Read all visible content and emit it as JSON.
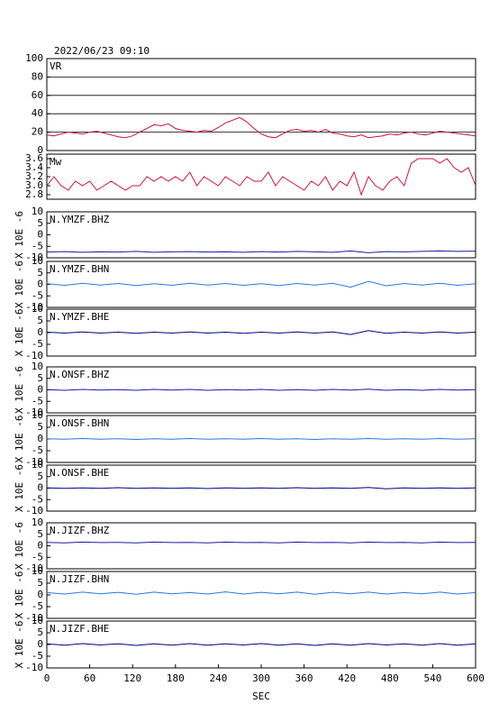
{
  "chart_data": [
    {
      "type": "line",
      "title": "2022/06/23 09:10",
      "grid": true,
      "x": [
        0,
        10,
        20,
        30,
        40,
        50,
        60,
        70,
        80,
        90,
        100,
        110,
        120,
        130,
        140,
        150,
        160,
        170,
        180,
        190,
        200,
        210,
        220,
        230,
        240,
        250,
        260,
        270,
        280,
        290,
        300,
        310,
        320,
        330,
        340,
        350,
        360,
        370,
        380,
        390,
        400,
        410,
        420,
        430,
        440,
        450,
        460,
        470,
        480,
        490,
        500,
        510,
        520,
        530,
        540,
        550,
        560,
        570,
        580,
        590,
        600
      ],
      "xlim": [
        0,
        600
      ],
      "ylim": [
        0,
        100
      ],
      "yticks": [
        0,
        20,
        40,
        60,
        80,
        100
      ],
      "series": [
        {
          "name": "VR",
          "color": "#d0103a",
          "values": [
            17,
            16,
            18,
            20,
            19,
            18,
            20,
            21,
            19,
            17,
            15,
            14,
            16,
            20,
            24,
            28,
            27,
            29,
            24,
            22,
            21,
            20,
            22,
            21,
            25,
            30,
            33,
            36,
            31,
            24,
            18,
            15,
            14,
            18,
            22,
            23,
            21,
            22,
            20,
            23,
            19,
            18,
            16,
            15,
            17,
            14,
            15,
            16,
            18,
            17,
            19,
            20,
            18,
            17,
            19,
            21,
            20,
            19,
            18,
            17,
            16
          ]
        }
      ]
    },
    {
      "type": "line",
      "x": [
        0,
        10,
        20,
        30,
        40,
        50,
        60,
        70,
        80,
        90,
        100,
        110,
        120,
        130,
        140,
        150,
        160,
        170,
        180,
        190,
        200,
        210,
        220,
        230,
        240,
        250,
        260,
        270,
        280,
        290,
        300,
        310,
        320,
        330,
        340,
        350,
        360,
        370,
        380,
        390,
        400,
        410,
        420,
        430,
        440,
        450,
        460,
        470,
        480,
        490,
        500,
        510,
        520,
        530,
        540,
        550,
        560,
        570,
        580,
        590,
        600
      ],
      "xlim": [
        0,
        600
      ],
      "ylim": [
        2.7,
        3.7
      ],
      "yticks": [
        2.8,
        {
          "value": 3,
          "label": "3.0"
        },
        3.2,
        3.4,
        3.6
      ],
      "series": [
        {
          "name": "Mw",
          "color": "#d0103a",
          "values": [
            3.0,
            3.2,
            3.0,
            2.9,
            3.1,
            3.0,
            3.1,
            2.9,
            3.0,
            3.1,
            3.0,
            2.9,
            3.0,
            3.0,
            3.2,
            3.1,
            3.2,
            3.1,
            3.2,
            3.1,
            3.3,
            3.0,
            3.2,
            3.1,
            3.0,
            3.2,
            3.1,
            3.0,
            3.2,
            3.1,
            3.1,
            3.3,
            3.0,
            3.2,
            3.1,
            3.0,
            2.9,
            3.1,
            3.0,
            3.2,
            2.9,
            3.1,
            3.0,
            3.3,
            2.8,
            3.2,
            3.0,
            2.9,
            3.1,
            3.2,
            3.0,
            3.5,
            3.6,
            3.6,
            3.6,
            3.5,
            3.6,
            3.4,
            3.3,
            3.4,
            3.0
          ]
        }
      ]
    },
    {
      "type": "line",
      "ylabel": "X 10E -6",
      "x": [
        0,
        25,
        50,
        75,
        100,
        125,
        150,
        175,
        200,
        225,
        250,
        275,
        300,
        325,
        350,
        375,
        400,
        425,
        450,
        475,
        500,
        525,
        550,
        575,
        600
      ],
      "xlim": [
        0,
        600
      ],
      "ylim": [
        -10,
        10
      ],
      "yticks": [
        -10,
        -5,
        0,
        5,
        10
      ],
      "series": [
        {
          "name": "N.YMZF.BHZ",
          "color": "#1a1aa8",
          "values": [
            -7.5,
            -7.3,
            -7.6,
            -7.4,
            -7.5,
            -7.2,
            -7.6,
            -7.4,
            -7.3,
            -7.5,
            -7.4,
            -7.6,
            -7.3,
            -7.5,
            -7.2,
            -7.4,
            -7.6,
            -7.0,
            -7.8,
            -7.3,
            -7.4,
            -7.2,
            -7.0,
            -7.2,
            -7.1
          ]
        }
      ]
    },
    {
      "type": "line",
      "ylabel": "X 10E -6",
      "x": [
        0,
        25,
        50,
        75,
        100,
        125,
        150,
        175,
        200,
        225,
        250,
        275,
        300,
        325,
        350,
        375,
        400,
        425,
        450,
        475,
        500,
        525,
        550,
        575,
        600
      ],
      "xlim": [
        0,
        600
      ],
      "ylim": [
        -10,
        10
      ],
      "yticks": [
        -10,
        -5,
        0,
        5,
        10
      ],
      "series": [
        {
          "name": "N.YMZF.BHN",
          "color": "#2a78e0",
          "values": [
            0.3,
            -0.4,
            0.5,
            -0.3,
            0.4,
            -0.5,
            0.3,
            -0.4,
            0.5,
            -0.3,
            0.4,
            -0.4,
            0.3,
            -0.5,
            0.4,
            -0.3,
            0.5,
            -1.2,
            1.3,
            -0.6,
            0.4,
            -0.3,
            0.5,
            -0.4,
            0.3
          ]
        }
      ]
    },
    {
      "type": "line",
      "ylabel": "X 10E -6",
      "x": [
        0,
        25,
        50,
        75,
        100,
        125,
        150,
        175,
        200,
        225,
        250,
        275,
        300,
        325,
        350,
        375,
        400,
        425,
        450,
        475,
        500,
        525,
        550,
        575,
        600
      ],
      "xlim": [
        0,
        600
      ],
      "ylim": [
        -10,
        10
      ],
      "yticks": [
        -10,
        -5,
        0,
        5,
        10
      ],
      "series": [
        {
          "name": "N.YMZF.BHE",
          "color": "#000080",
          "values": [
            0.2,
            -0.2,
            0.3,
            -0.2,
            0.2,
            -0.3,
            0.2,
            -0.2,
            0.3,
            -0.2,
            0.2,
            -0.3,
            0.2,
            -0.2,
            0.3,
            -0.2,
            0.3,
            -0.8,
            0.9,
            -0.3,
            0.2,
            -0.2,
            0.3,
            -0.2,
            0.2
          ]
        }
      ]
    },
    {
      "type": "line",
      "ylabel": "X 10E -6",
      "x": [
        0,
        25,
        50,
        75,
        100,
        125,
        150,
        175,
        200,
        225,
        250,
        275,
        300,
        325,
        350,
        375,
        400,
        425,
        450,
        475,
        500,
        525,
        550,
        575,
        600
      ],
      "xlim": [
        0,
        600
      ],
      "ylim": [
        -10,
        10
      ],
      "yticks": [
        -10,
        -5,
        0,
        5,
        10
      ],
      "series": [
        {
          "name": "N.ONSF.BHZ",
          "color": "#1a1aa8",
          "values": [
            0.1,
            -0.2,
            0.2,
            -0.1,
            0.1,
            -0.2,
            0.2,
            -0.1,
            0.2,
            -0.2,
            0.1,
            -0.1,
            0.2,
            -0.2,
            0.1,
            -0.2,
            0.2,
            -0.1,
            0.3,
            -0.2,
            0.1,
            -0.2,
            0.2,
            -0.1,
            0.1
          ]
        }
      ]
    },
    {
      "type": "line",
      "ylabel": "X 10E -6",
      "x": [
        0,
        25,
        50,
        75,
        100,
        125,
        150,
        175,
        200,
        225,
        250,
        275,
        300,
        325,
        350,
        375,
        400,
        425,
        450,
        475,
        500,
        525,
        550,
        575,
        600
      ],
      "xlim": [
        0,
        600
      ],
      "ylim": [
        -10,
        10
      ],
      "yticks": [
        -10,
        -5,
        0,
        5,
        10
      ],
      "series": [
        {
          "name": "N.ONSF.BHN",
          "color": "#2a78e0",
          "values": [
            0.1,
            -0.1,
            0.2,
            -0.1,
            0.1,
            -0.2,
            0.1,
            -0.1,
            0.2,
            -0.1,
            0.1,
            -0.1,
            0.2,
            -0.1,
            0.1,
            -0.2,
            0.1,
            -0.1,
            0.2,
            -0.1,
            0.1,
            -0.1,
            0.2,
            -0.1,
            0.1
          ]
        }
      ]
    },
    {
      "type": "line",
      "ylabel": "X 10E -6",
      "x": [
        0,
        25,
        50,
        75,
        100,
        125,
        150,
        175,
        200,
        225,
        250,
        275,
        300,
        325,
        350,
        375,
        400,
        425,
        450,
        475,
        500,
        525,
        550,
        575,
        600
      ],
      "xlim": [
        0,
        600
      ],
      "ylim": [
        -10,
        10
      ],
      "yticks": [
        -10,
        -5,
        0,
        5,
        10
      ],
      "series": [
        {
          "name": "N.ONSF.BHE",
          "color": "#000080",
          "values": [
            0.1,
            -0.1,
            0.1,
            -0.1,
            0.2,
            -0.1,
            0.1,
            -0.1,
            0.1,
            -0.2,
            0.1,
            -0.1,
            0.1,
            -0.1,
            0.2,
            -0.1,
            0.1,
            -0.1,
            0.3,
            -0.3,
            0.1,
            -0.1,
            0.1,
            -0.1,
            0.1
          ]
        }
      ]
    },
    {
      "type": "line",
      "ylabel": "X 10E -6",
      "x": [
        0,
        25,
        50,
        75,
        100,
        125,
        150,
        175,
        200,
        225,
        250,
        275,
        300,
        325,
        350,
        375,
        400,
        425,
        450,
        475,
        500,
        525,
        550,
        575,
        600
      ],
      "xlim": [
        0,
        600
      ],
      "ylim": [
        -10,
        10
      ],
      "yticks": [
        -10,
        -5,
        0,
        5,
        10
      ],
      "series": [
        {
          "name": "N.JIZF.BHZ",
          "color": "#1a1aa8",
          "values": [
            1.5,
            1.3,
            1.6,
            1.4,
            1.5,
            1.3,
            1.6,
            1.4,
            1.5,
            1.3,
            1.6,
            1.4,
            1.5,
            1.3,
            1.6,
            1.4,
            1.5,
            1.3,
            1.6,
            1.4,
            1.5,
            1.3,
            1.6,
            1.4,
            1.5
          ]
        }
      ]
    },
    {
      "type": "line",
      "ylabel": "X 10E -6",
      "x": [
        0,
        25,
        50,
        75,
        100,
        125,
        150,
        175,
        200,
        225,
        250,
        275,
        300,
        325,
        350,
        375,
        400,
        425,
        450,
        475,
        500,
        525,
        550,
        575,
        600
      ],
      "xlim": [
        0,
        600
      ],
      "ylim": [
        -10,
        10
      ],
      "yticks": [
        -10,
        -5,
        0,
        5,
        10
      ],
      "series": [
        {
          "name": "N.JIZF.BHN",
          "color": "#2a78e0",
          "values": [
            1.0,
            0.4,
            1.2,
            0.5,
            1.1,
            0.3,
            1.2,
            0.5,
            1.0,
            0.4,
            1.3,
            0.4,
            1.1,
            0.5,
            1.2,
            0.3,
            1.1,
            0.5,
            1.2,
            0.4,
            1.0,
            0.5,
            1.2,
            0.4,
            1.0
          ]
        }
      ]
    },
    {
      "type": "line",
      "ylabel": "X 10E -6",
      "xlabel": "SEC",
      "x": [
        0,
        25,
        50,
        75,
        100,
        125,
        150,
        175,
        200,
        225,
        250,
        275,
        300,
        325,
        350,
        375,
        400,
        425,
        450,
        475,
        500,
        525,
        550,
        575,
        600
      ],
      "xlim": [
        0,
        600
      ],
      "xticks": [
        0,
        60,
        120,
        180,
        240,
        300,
        360,
        420,
        480,
        540,
        600
      ],
      "ylim": [
        -10,
        10
      ],
      "yticks": [
        -10,
        -5,
        0,
        5,
        10
      ],
      "series": [
        {
          "name": "N.JIZF.BHE",
          "color": "#000080",
          "values": [
            0.3,
            -0.3,
            0.4,
            -0.2,
            0.3,
            -0.4,
            0.3,
            -0.3,
            0.4,
            -0.3,
            0.3,
            -0.2,
            0.4,
            -0.3,
            0.3,
            -0.4,
            0.3,
            -0.3,
            0.4,
            -0.2,
            0.3,
            -0.3,
            0.4,
            -0.3,
            0.3
          ]
        }
      ]
    }
  ]
}
